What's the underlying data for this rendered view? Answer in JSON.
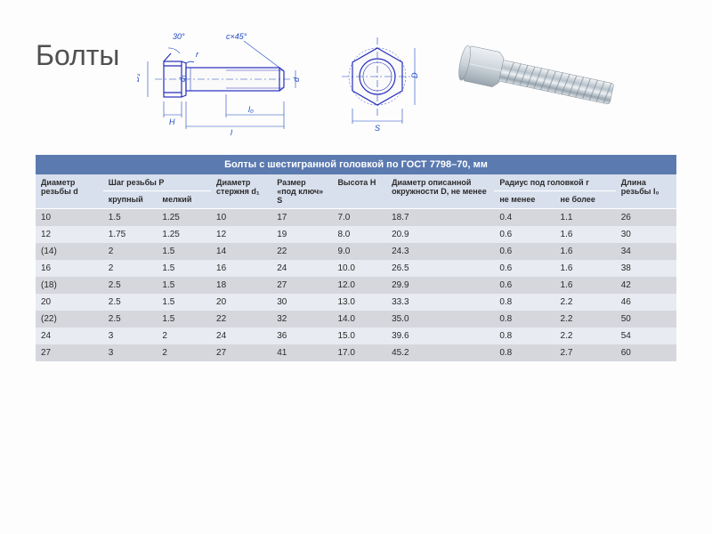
{
  "title": "Болты",
  "diagram": {
    "angle_label": "30°",
    "r_label": "r",
    "chamfer_label": "c×45°",
    "D1_label": "D₁",
    "d1_label": "d₁",
    "d_label": "d",
    "l0_label": "l₀",
    "H_label": "H",
    "l_label": "l",
    "D_label": "D",
    "S_label": "S",
    "stroke_main": "#272fbe",
    "stroke_dim": "#1d47c2",
    "stroke_center": "#1d47c2",
    "fill_bg": "#fafafa",
    "text_color": "#1d47c2",
    "linewidth": 1.2
  },
  "table": {
    "caption": "Болты с шестигранной головкой по ГОСТ 7798–70, мм",
    "headers_row1": [
      "Диаметр резьбы d",
      "Шаг резьбы P",
      "Диаметр стержня d₁",
      "Размер «под ключ» S",
      "Высота H",
      "Диаметр описанной окружности D, не менее",
      "Радиус под головкой r",
      "Длина резьбы l₀"
    ],
    "headers_row2": {
      "large": "крупный",
      "small": "мелкий",
      "not_less": "не менее",
      "not_more": "не более"
    },
    "rows": [
      [
        "10",
        "1.5",
        "1.25",
        "10",
        "17",
        "7.0",
        "18.7",
        "0.4",
        "1.1",
        "26"
      ],
      [
        "12",
        "1.75",
        "1.25",
        "12",
        "19",
        "8.0",
        "20.9",
        "0.6",
        "1.6",
        "30"
      ],
      [
        "(14)",
        "2",
        "1.5",
        "14",
        "22",
        "9.0",
        "24.3",
        "0.6",
        "1.6",
        "34"
      ],
      [
        "16",
        "2",
        "1.5",
        "16",
        "24",
        "10.0",
        "26.5",
        "0.6",
        "1.6",
        "38"
      ],
      [
        "(18)",
        "2.5",
        "1.5",
        "18",
        "27",
        "12.0",
        "29.9",
        "0.6",
        "1.6",
        "42"
      ],
      [
        "20",
        "2.5",
        "1.5",
        "20",
        "30",
        "13.0",
        "33.3",
        "0.8",
        "2.2",
        "46"
      ],
      [
        "(22)",
        "2.5",
        "1.5",
        "22",
        "32",
        "14.0",
        "35.0",
        "0.8",
        "2.2",
        "50"
      ],
      [
        "24",
        "3",
        "2",
        "24",
        "36",
        "15.0",
        "39.6",
        "0.8",
        "2.2",
        "54"
      ],
      [
        "27",
        "3",
        "2",
        "27",
        "41",
        "17.0",
        "45.2",
        "0.8",
        "2.7",
        "60"
      ]
    ],
    "col_widths_pct": [
      10,
      8,
      8,
      9,
      9,
      8,
      16,
      9,
      9,
      9
    ],
    "header_bg": "#5b7ab0",
    "header_fg": "#ffffff",
    "subheader_bg": "#d9e0ed",
    "row_odd_bg": "#d5d7dd",
    "row_even_bg": "#e8ebf1",
    "font_size_body": 10,
    "font_size_header": 9
  }
}
